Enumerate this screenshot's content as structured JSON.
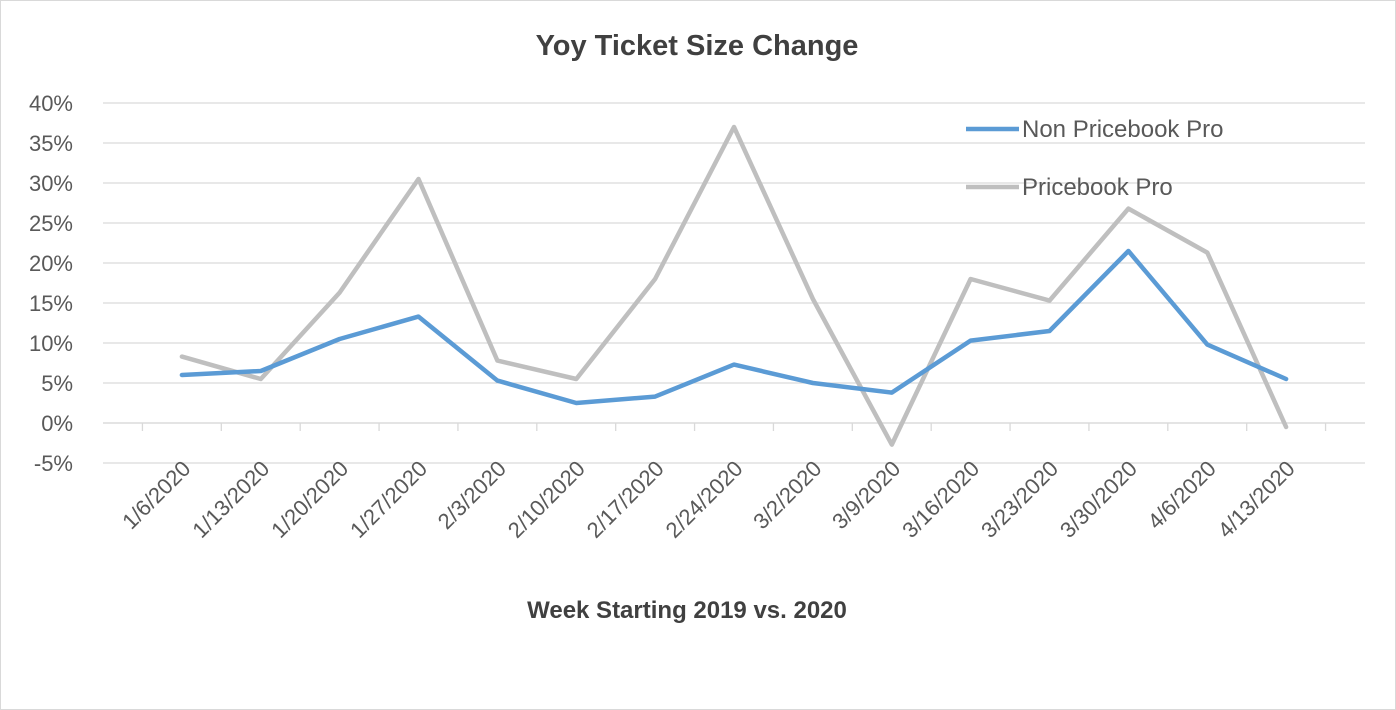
{
  "chart_data": {
    "type": "line",
    "title": "Yoy Ticket Size Change",
    "xlabel": "Week Starting 2019 vs. 2020",
    "ylabel": "",
    "categories": [
      "1/6/2020",
      "1/13/2020",
      "1/20/2020",
      "1/27/2020",
      "2/3/2020",
      "2/10/2020",
      "2/17/2020",
      "2/24/2020",
      "3/2/2020",
      "3/9/2020",
      "3/16/2020",
      "3/23/2020",
      "3/30/2020",
      "4/6/2020",
      "4/13/2020"
    ],
    "ylim": [
      -0.05,
      0.4
    ],
    "yticks": [
      -0.05,
      0,
      0.05,
      0.1,
      0.15,
      0.2,
      0.25,
      0.3,
      0.35,
      0.4
    ],
    "ytick_labels": [
      "-5%",
      "0%",
      "5%",
      "10%",
      "15%",
      "20%",
      "25%",
      "30%",
      "35%",
      "40%"
    ],
    "grid": true,
    "legend_position": "top-right",
    "series": [
      {
        "name": "Non Pricebook Pro",
        "color": "#5b9bd5",
        "values": [
          0.06,
          0.065,
          0.105,
          0.133,
          0.053,
          0.025,
          0.033,
          0.073,
          0.05,
          0.038,
          0.103,
          0.115,
          0.215,
          0.098,
          0.055
        ]
      },
      {
        "name": "Pricebook Pro",
        "color": "#bfbfbf",
        "values": [
          0.083,
          0.055,
          0.163,
          0.305,
          0.078,
          0.055,
          0.18,
          0.37,
          0.155,
          -0.027,
          0.18,
          0.153,
          0.268,
          0.213,
          -0.005
        ]
      }
    ]
  }
}
